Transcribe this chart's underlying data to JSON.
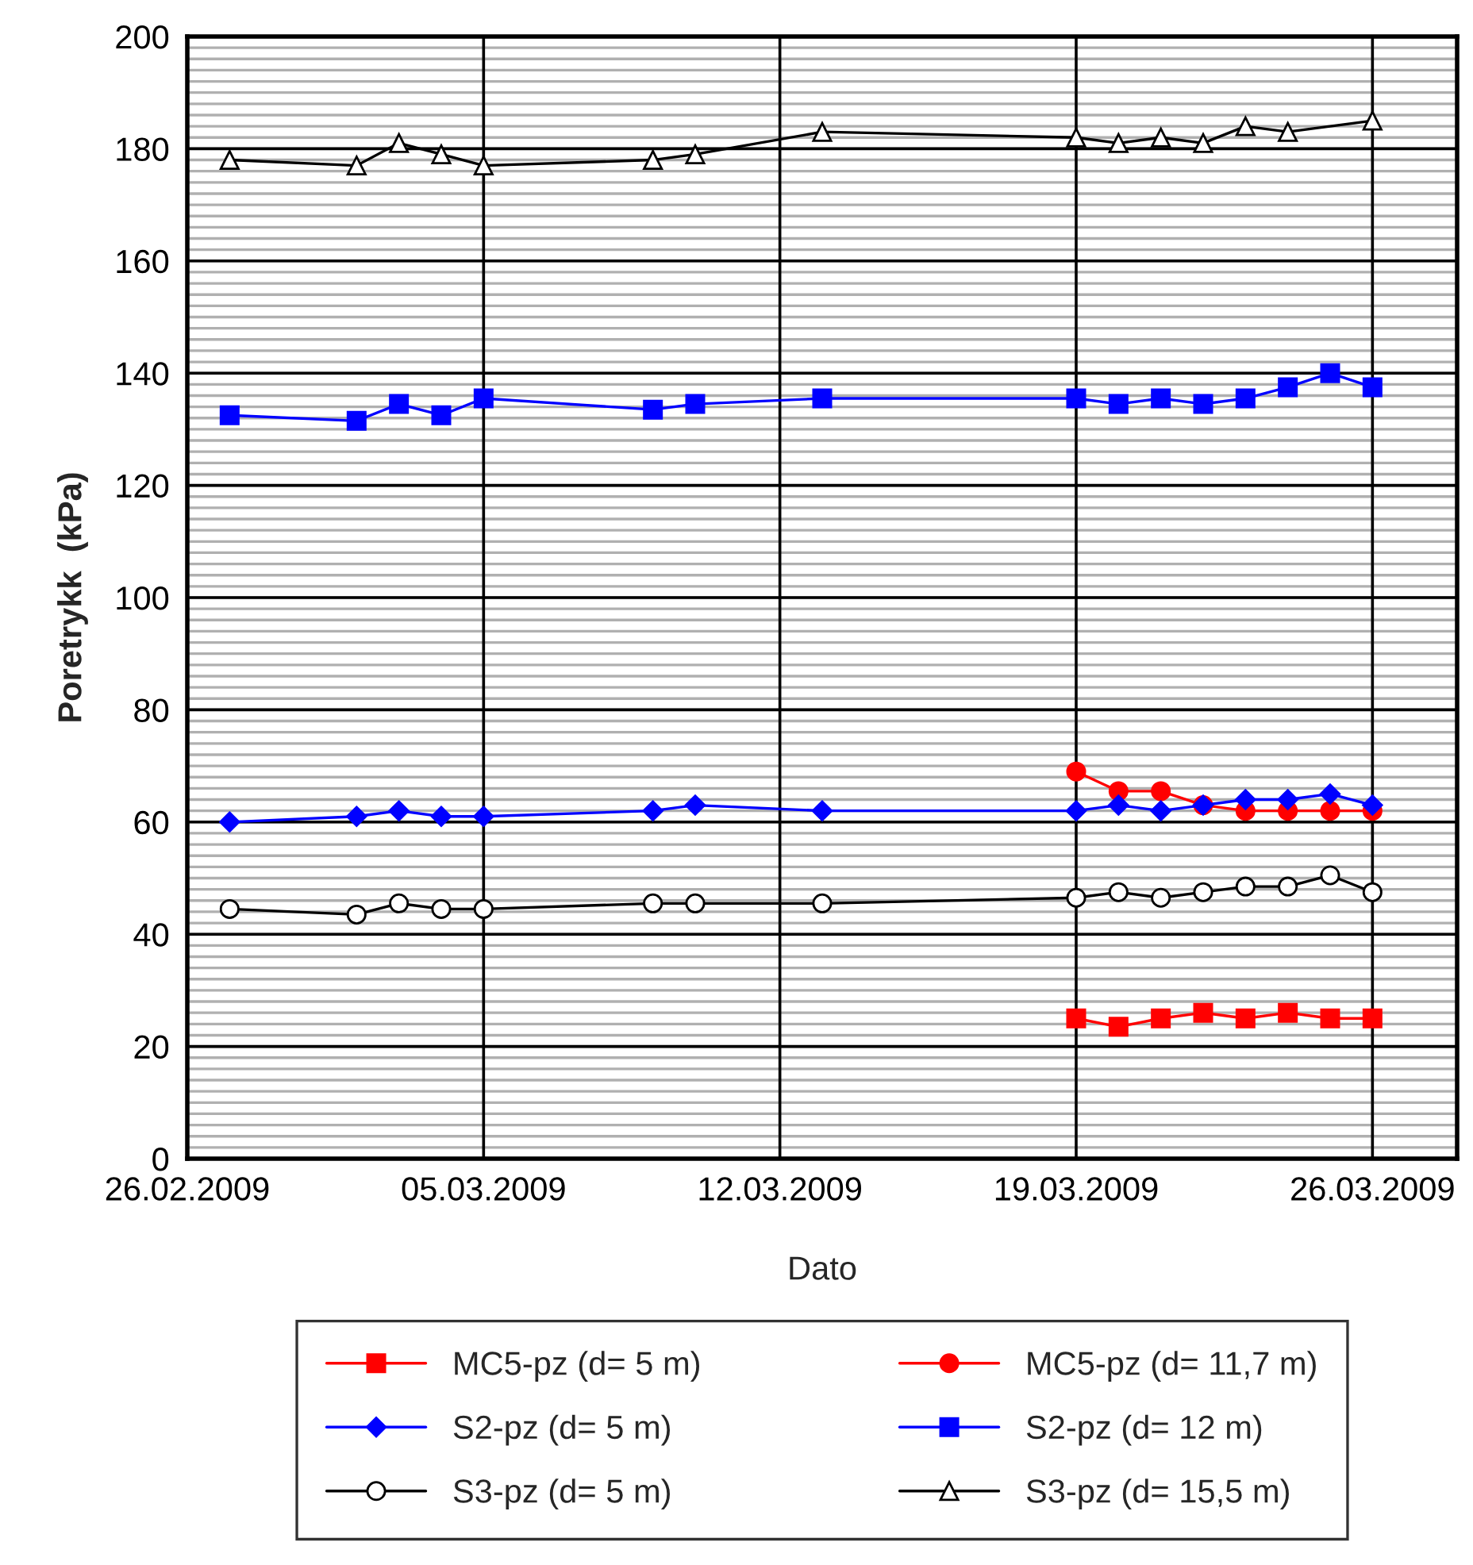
{
  "chart_data": {
    "type": "line",
    "xlabel": "Dato",
    "ylabel": "Poretrykk  (kPa)",
    "xlim": [
      "2009-02-26",
      "2009-03-28"
    ],
    "xticks": [
      {
        "value": "2009-02-26",
        "label": "26.02.2009"
      },
      {
        "value": "2009-03-05",
        "label": "05.03.2009"
      },
      {
        "value": "2009-03-12",
        "label": "12.03.2009"
      },
      {
        "value": "2009-03-19",
        "label": "19.03.2009"
      },
      {
        "value": "2009-03-26",
        "label": "26.03.2009"
      }
    ],
    "ylim": [
      0,
      200
    ],
    "yticks": [
      0,
      20,
      40,
      60,
      80,
      100,
      120,
      140,
      160,
      180,
      200
    ],
    "grid": true,
    "legend": "bottom",
    "line_style": "solid",
    "series": [
      {
        "name": "MC5-pz (d= 5 m)",
        "color": "#ff0000",
        "marker": "square",
        "x": [
          "2009-03-19",
          "2009-03-20",
          "2009-03-21",
          "2009-03-22",
          "2009-03-23",
          "2009-03-24",
          "2009-03-25",
          "2009-03-26"
        ],
        "values": [
          25,
          23.5,
          25,
          26,
          25,
          26,
          25,
          25
        ]
      },
      {
        "name": "MC5-pz (d= 11,7 m)",
        "color": "#ff0000",
        "marker": "circle",
        "x": [
          "2009-03-19",
          "2009-03-20",
          "2009-03-21",
          "2009-03-22",
          "2009-03-23",
          "2009-03-24",
          "2009-03-25",
          "2009-03-26"
        ],
        "values": [
          69,
          65.5,
          65.5,
          63,
          62,
          62,
          62,
          62
        ]
      },
      {
        "name": "S2-pz (d= 5 m)",
        "color": "#0000ff",
        "marker": "diamond",
        "x": [
          "2009-02-27",
          "2009-03-02",
          "2009-03-03",
          "2009-03-04",
          "2009-03-05",
          "2009-03-09",
          "2009-03-10",
          "2009-03-13",
          "2009-03-19",
          "2009-03-20",
          "2009-03-21",
          "2009-03-22",
          "2009-03-23",
          "2009-03-24",
          "2009-03-25",
          "2009-03-26"
        ],
        "values": [
          60,
          61,
          62,
          61,
          61,
          62,
          63,
          62,
          62,
          63,
          62,
          63,
          64,
          64,
          65,
          63
        ]
      },
      {
        "name": "S2-pz (d= 12 m)",
        "color": "#0000ff",
        "marker": "square",
        "x": [
          "2009-02-27",
          "2009-03-02",
          "2009-03-03",
          "2009-03-04",
          "2009-03-05",
          "2009-03-09",
          "2009-03-10",
          "2009-03-13",
          "2009-03-19",
          "2009-03-20",
          "2009-03-21",
          "2009-03-22",
          "2009-03-23",
          "2009-03-24",
          "2009-03-25",
          "2009-03-26"
        ],
        "values": [
          132.5,
          131.5,
          134.5,
          132.5,
          135.5,
          133.5,
          134.5,
          135.5,
          135.5,
          134.5,
          135.5,
          134.5,
          135.5,
          137.5,
          140,
          137.5
        ]
      },
      {
        "name": "S3-pz (d= 5 m)",
        "color": "#000000",
        "marker": "circle",
        "x": [
          "2009-02-27",
          "2009-03-02",
          "2009-03-03",
          "2009-03-04",
          "2009-03-05",
          "2009-03-09",
          "2009-03-10",
          "2009-03-13",
          "2009-03-19",
          "2009-03-20",
          "2009-03-21",
          "2009-03-22",
          "2009-03-23",
          "2009-03-24",
          "2009-03-25",
          "2009-03-26"
        ],
        "values": [
          44.5,
          43.5,
          45.5,
          44.5,
          44.5,
          45.5,
          45.5,
          45.5,
          46.5,
          47.5,
          46.5,
          47.5,
          48.5,
          48.5,
          50.5,
          47.5
        ]
      },
      {
        "name": "S3-pz (d= 15,5 m)",
        "color": "#000000",
        "marker": "triangle",
        "x": [
          "2009-02-27",
          "2009-03-02",
          "2009-03-03",
          "2009-03-04",
          "2009-03-05",
          "2009-03-09",
          "2009-03-10",
          "2009-03-13",
          "2009-03-19",
          "2009-03-20",
          "2009-03-21",
          "2009-03-22",
          "2009-03-23",
          "2009-03-24",
          "2009-03-26"
        ],
        "values": [
          178,
          177,
          181,
          179,
          177,
          178,
          179,
          183,
          182,
          181,
          182,
          181,
          184,
          183,
          185
        ]
      }
    ]
  }
}
